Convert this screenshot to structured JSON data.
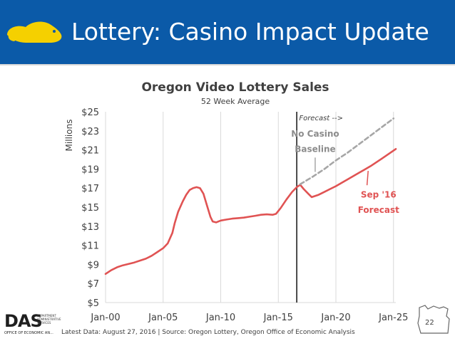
{
  "header": {
    "title": "Lottery: Casino Impact Update",
    "background_color": "#0b5aa8",
    "logo_icon": "beaver-icon",
    "logo_color": "#f5d000"
  },
  "chart_data": {
    "type": "line",
    "title": "Oregon Video Lottery Sales",
    "subtitle": "52 Week Average",
    "ylabel": "Millions",
    "xlabel": "",
    "x_type": "year",
    "xlim": [
      2000,
      2025.2
    ],
    "ylim": [
      5,
      25
    ],
    "x_ticks": [
      {
        "value": 2000,
        "label": "Jan-00"
      },
      {
        "value": 2005,
        "label": "Jan-05"
      },
      {
        "value": 2010,
        "label": "Jan-10"
      },
      {
        "value": 2015,
        "label": "Jan-15"
      },
      {
        "value": 2020,
        "label": "Jan-20"
      },
      {
        "value": 2025,
        "label": "Jan-25"
      }
    ],
    "y_ticks": [
      {
        "value": 5,
        "label": "$5"
      },
      {
        "value": 7,
        "label": "$7"
      },
      {
        "value": 9,
        "label": "$9"
      },
      {
        "value": 11,
        "label": "$11"
      },
      {
        "value": 13,
        "label": "$13"
      },
      {
        "value": 15,
        "label": "$15"
      },
      {
        "value": 17,
        "label": "$17"
      },
      {
        "value": 19,
        "label": "$19"
      },
      {
        "value": 21,
        "label": "$21"
      },
      {
        "value": 23,
        "label": "$23"
      },
      {
        "value": 25,
        "label": "$25"
      }
    ],
    "grid": {
      "vertical": true,
      "horizontal": false
    },
    "forecast_line_x": 2016.6,
    "series": [
      {
        "name": "Actual / Sep '16 Forecast",
        "color": "#e05353",
        "dash": false,
        "points": [
          [
            2000.0,
            8.0
          ],
          [
            2000.5,
            8.4
          ],
          [
            2001.0,
            8.7
          ],
          [
            2001.5,
            8.9
          ],
          [
            2002.0,
            9.05
          ],
          [
            2002.5,
            9.2
          ],
          [
            2003.0,
            9.4
          ],
          [
            2003.5,
            9.6
          ],
          [
            2004.0,
            9.9
          ],
          [
            2004.5,
            10.3
          ],
          [
            2005.0,
            10.7
          ],
          [
            2005.4,
            11.2
          ],
          [
            2005.8,
            12.3
          ],
          [
            2006.0,
            13.3
          ],
          [
            2006.3,
            14.5
          ],
          [
            2006.7,
            15.6
          ],
          [
            2007.0,
            16.3
          ],
          [
            2007.3,
            16.8
          ],
          [
            2007.6,
            17.0
          ],
          [
            2007.9,
            17.1
          ],
          [
            2008.2,
            17.0
          ],
          [
            2008.5,
            16.4
          ],
          [
            2008.8,
            15.2
          ],
          [
            2009.1,
            14.0
          ],
          [
            2009.3,
            13.5
          ],
          [
            2009.6,
            13.4
          ],
          [
            2010.0,
            13.6
          ],
          [
            2010.5,
            13.7
          ],
          [
            2011.0,
            13.8
          ],
          [
            2011.5,
            13.85
          ],
          [
            2012.0,
            13.9
          ],
          [
            2012.5,
            14.0
          ],
          [
            2013.0,
            14.1
          ],
          [
            2013.5,
            14.2
          ],
          [
            2014.0,
            14.25
          ],
          [
            2014.5,
            14.2
          ],
          [
            2014.8,
            14.3
          ],
          [
            2015.2,
            14.9
          ],
          [
            2015.7,
            15.8
          ],
          [
            2016.2,
            16.6
          ],
          [
            2016.6,
            17.1
          ],
          [
            2016.9,
            17.35
          ],
          [
            2017.2,
            16.9
          ],
          [
            2017.6,
            16.4
          ],
          [
            2017.9,
            16.05
          ],
          [
            2018.5,
            16.3
          ],
          [
            2019.0,
            16.6
          ],
          [
            2019.5,
            16.9
          ],
          [
            2020.0,
            17.2
          ],
          [
            2021.0,
            17.9
          ],
          [
            2022.0,
            18.6
          ],
          [
            2023.0,
            19.3
          ],
          [
            2024.0,
            20.1
          ],
          [
            2025.2,
            21.1
          ]
        ]
      },
      {
        "name": "No Casino Baseline",
        "color": "#a6a6a6",
        "dash": true,
        "points": [
          [
            2016.9,
            17.4
          ],
          [
            2018.0,
            18.2
          ],
          [
            2019.0,
            19.0
          ],
          [
            2020.0,
            19.9
          ],
          [
            2021.0,
            20.7
          ],
          [
            2022.0,
            21.6
          ],
          [
            2023.0,
            22.5
          ],
          [
            2024.0,
            23.4
          ],
          [
            2025.0,
            24.3
          ]
        ]
      }
    ],
    "annotations": [
      {
        "text": "Forecast -->",
        "style": "forecast",
        "x": 2016.8,
        "y": 24.1
      },
      {
        "text": "No Casino",
        "style": "gray",
        "x": 2018.2,
        "y": 22.4
      },
      {
        "text": "Baseline",
        "style": "gray",
        "x": 2018.2,
        "y": 20.8
      },
      {
        "text": "Sep '16",
        "style": "red",
        "x": 2023.7,
        "y": 16.0
      },
      {
        "text": "Forecast",
        "style": "red",
        "x": 2023.7,
        "y": 14.4
      }
    ],
    "leaders": [
      {
        "from": [
          2018.2,
          20.2
        ],
        "to": [
          2018.2,
          18.7
        ],
        "color": "#a6a6a6"
      },
      {
        "from": [
          2022.7,
          17.3
        ],
        "to": [
          2022.8,
          18.8
        ],
        "color": "#e05353"
      }
    ]
  },
  "footer": {
    "logo_text": "DAS",
    "logo_side_text": [
      "DEPARTMENT",
      "ADMINISTRATIVE",
      "SERVICES"
    ],
    "logo_bottom_text": "OFFICE OF ECONOMIC AN...",
    "source": "Latest Data: August 27, 2016  |  Source: Oregon Lottery, Oregon Office of Economic Analysis",
    "page_number": "22",
    "corner_icon": "oregon-state-outline-icon"
  }
}
